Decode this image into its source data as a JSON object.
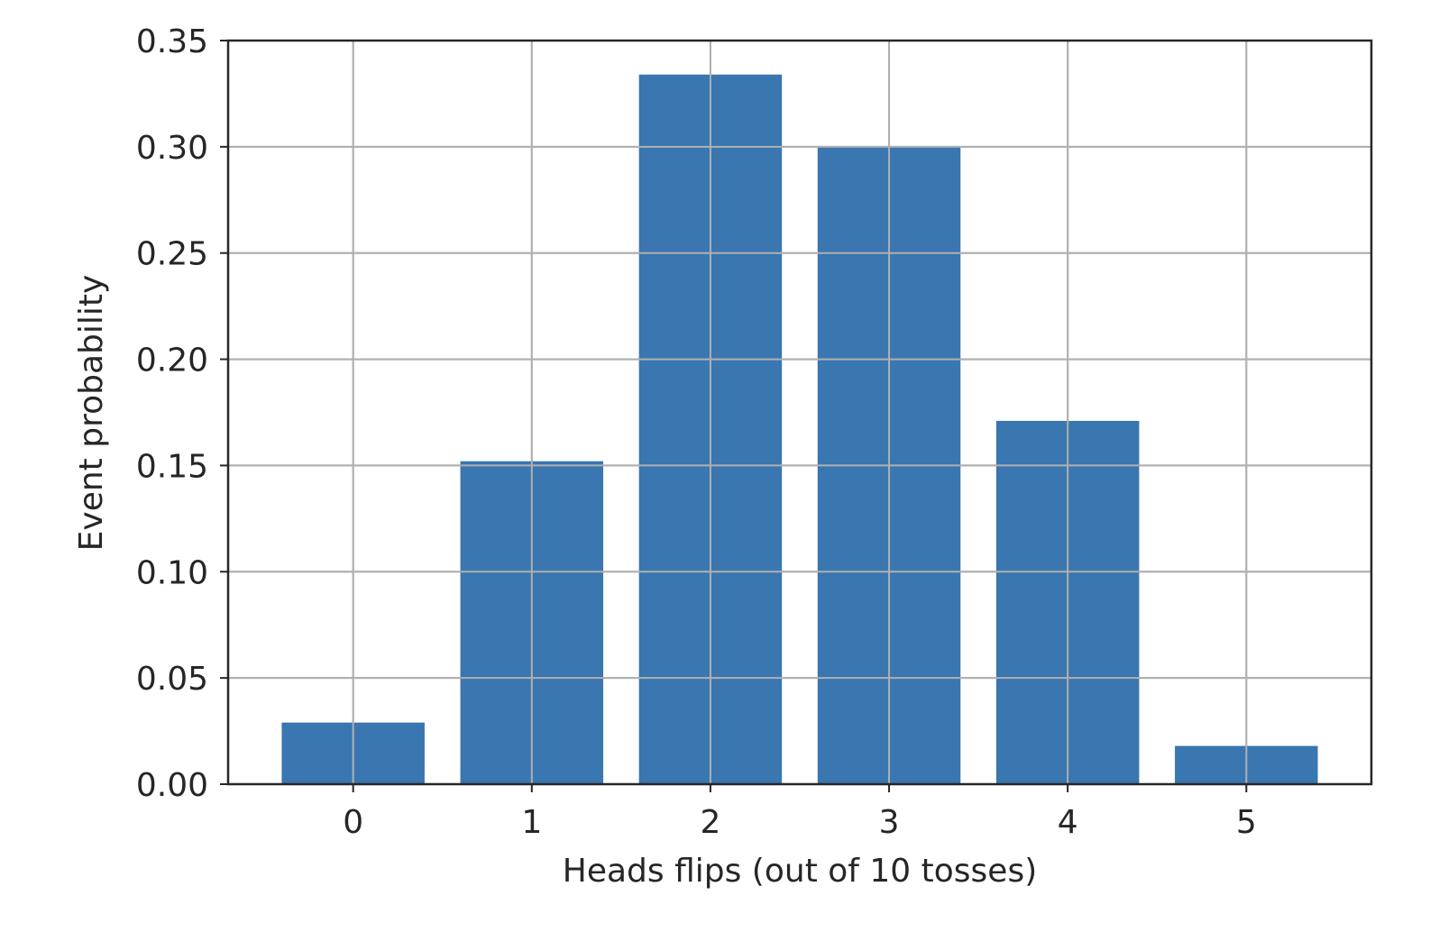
{
  "chart_data": {
    "type": "bar",
    "title": "",
    "xlabel": "Heads flips (out of 10 tosses)",
    "ylabel": "Event probability",
    "categories": [
      "0",
      "1",
      "2",
      "3",
      "4",
      "5"
    ],
    "x": [
      0,
      1,
      2,
      3,
      4,
      5
    ],
    "values": [
      0.029,
      0.152,
      0.334,
      0.3,
      0.171,
      0.018
    ],
    "xlim": [
      -0.7,
      5.7
    ],
    "ylim": [
      0,
      0.35
    ],
    "yticks": [
      "0.00",
      "0.05",
      "0.10",
      "0.15",
      "0.20",
      "0.25",
      "0.30",
      "0.35"
    ],
    "ytick_values": [
      0,
      0.05,
      0.1,
      0.15,
      0.2,
      0.25,
      0.3,
      0.35
    ],
    "grid": true,
    "bar_color": "#3a76af",
    "grid_color": "#b0b0b0",
    "axis_color": "#262626"
  }
}
